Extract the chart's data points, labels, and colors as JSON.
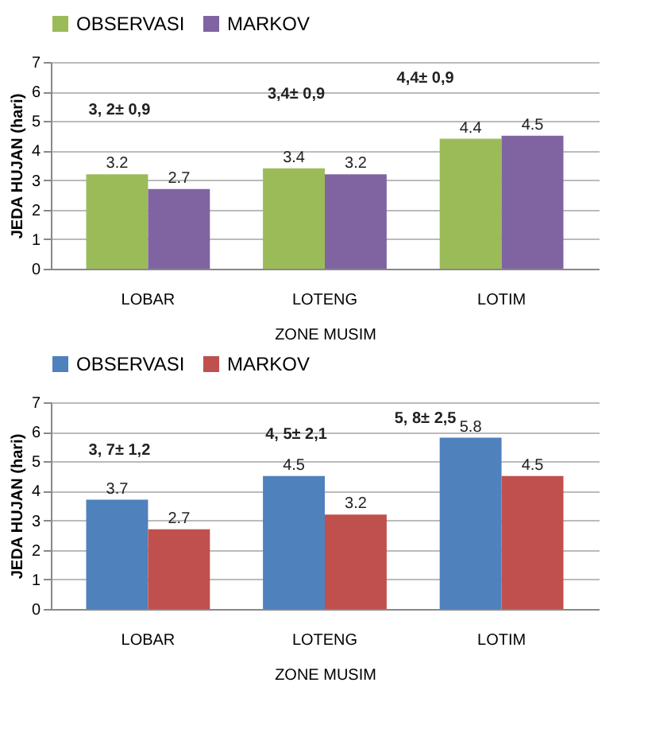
{
  "chart_data": [
    {
      "type": "bar",
      "xlabel": "ZONE MUSIM",
      "ylabel": "JEDA HUJAN (hari)",
      "categories": [
        "LOBAR",
        "LOTENG",
        "LOTIM"
      ],
      "series": [
        {
          "name": "OBSERVASI",
          "color": "#9bbb59",
          "values": [
            3.2,
            3.4,
            4.4
          ]
        },
        {
          "name": "MARKOV",
          "color": "#8064a2",
          "values": [
            2.7,
            3.2,
            4.5
          ]
        }
      ],
      "ylim": [
        0,
        7
      ],
      "yticks": [
        0,
        1,
        2,
        3,
        4,
        5,
        6,
        7
      ],
      "grid": "y",
      "legend": "top",
      "data_labels": true,
      "annotations": [
        "3, 2± 0,9",
        "3,4± 0,9",
        "4,4± 0,9"
      ]
    },
    {
      "type": "bar",
      "xlabel": "ZONE MUSIM",
      "ylabel": "JEDA HUJAN (hari)",
      "categories": [
        "LOBAR",
        "LOTENG",
        "LOTIM"
      ],
      "series": [
        {
          "name": "OBSERVASI",
          "color": "#4f81bd",
          "values": [
            3.7,
            4.5,
            5.8
          ]
        },
        {
          "name": "MARKOV",
          "color": "#c0504d",
          "values": [
            2.7,
            3.2,
            4.5
          ]
        }
      ],
      "ylim": [
        0,
        7
      ],
      "yticks": [
        0,
        1,
        2,
        3,
        4,
        5,
        6,
        7
      ],
      "grid": "y",
      "legend": "top",
      "data_labels": true,
      "annotations": [
        "3, 7± 1,2",
        "4, 5± 2,1",
        "5, 8± 2,5"
      ]
    }
  ]
}
